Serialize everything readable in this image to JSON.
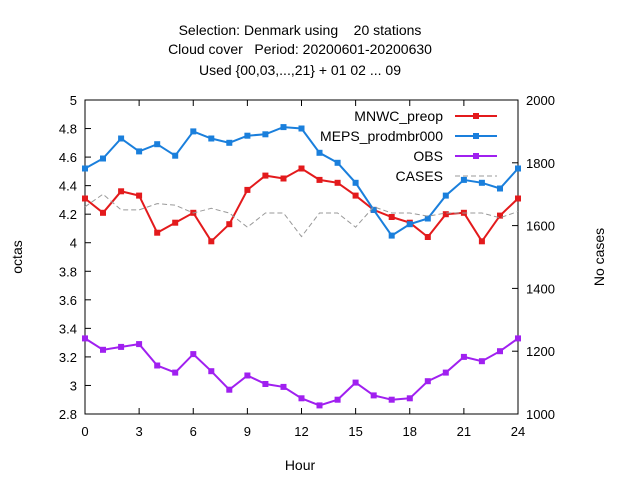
{
  "chart_data": {
    "type": "line",
    "title_lines": [
      "Selection: Denmark using    20 stations",
      "Cloud cover   Period: 20200601-20200630",
      "Used {00,03,...,21} + 01 02 ... 09"
    ],
    "xlabel": "Hour",
    "ylabel": "octas",
    "y2label": "No cases",
    "xlim": [
      0,
      24
    ],
    "ylim": [
      2.8,
      5.0
    ],
    "y2lim": [
      1000,
      2000
    ],
    "xticks": [
      "0",
      "3",
      "6",
      "9",
      "12",
      "15",
      "18",
      "21",
      "24"
    ],
    "yticks": [
      "2.8",
      "3",
      "3.2",
      "3.4",
      "3.6",
      "3.8",
      "4",
      "4.2",
      "4.4",
      "4.6",
      "4.8",
      "5"
    ],
    "y2ticks": [
      "1000",
      "1200",
      "1400",
      "1600",
      "1800",
      "2000"
    ],
    "grid": false,
    "legend_position": "top-right",
    "x": [
      0,
      1,
      2,
      3,
      4,
      5,
      6,
      7,
      8,
      9,
      10,
      11,
      12,
      13,
      14,
      15,
      16,
      17,
      18,
      19,
      20,
      21,
      22,
      23,
      24
    ],
    "series": [
      {
        "name": "MNWC_preop",
        "color": "#e31a1c",
        "axis": "y1",
        "values": [
          4.31,
          4.21,
          4.36,
          4.33,
          4.07,
          4.14,
          4.21,
          4.01,
          4.13,
          4.37,
          4.47,
          4.45,
          4.52,
          4.44,
          4.42,
          4.33,
          4.23,
          4.18,
          4.14,
          4.04,
          4.2,
          4.21,
          4.01,
          4.19,
          4.31
        ]
      },
      {
        "name": "MEPS_prodmbr000",
        "color": "#1a7fdc",
        "axis": "y1",
        "values": [
          4.52,
          4.59,
          4.73,
          4.64,
          4.69,
          4.61,
          4.78,
          4.73,
          4.7,
          4.75,
          4.76,
          4.81,
          4.8,
          4.63,
          4.56,
          4.42,
          4.23,
          4.05,
          4.13,
          4.17,
          4.33,
          4.44,
          4.42,
          4.38,
          4.52
        ]
      },
      {
        "name": "OBS",
        "color": "#a020f0",
        "axis": "y1",
        "values": [
          3.33,
          3.25,
          3.27,
          3.29,
          3.14,
          3.09,
          3.22,
          3.1,
          2.97,
          3.07,
          3.01,
          2.99,
          2.91,
          2.86,
          2.9,
          3.02,
          2.93,
          2.9,
          2.91,
          3.03,
          3.09,
          3.2,
          3.17,
          3.24,
          3.33
        ]
      },
      {
        "name": "CASES",
        "color": "#999999",
        "axis": "y2",
        "values": [
          1660,
          1700,
          1650,
          1650,
          1670,
          1665,
          1640,
          1655,
          1640,
          1595,
          1640,
          1640,
          1565,
          1640,
          1640,
          1595,
          1660,
          1640,
          1640,
          1630,
          1640,
          1640,
          1640,
          1625,
          1645
        ]
      }
    ]
  }
}
